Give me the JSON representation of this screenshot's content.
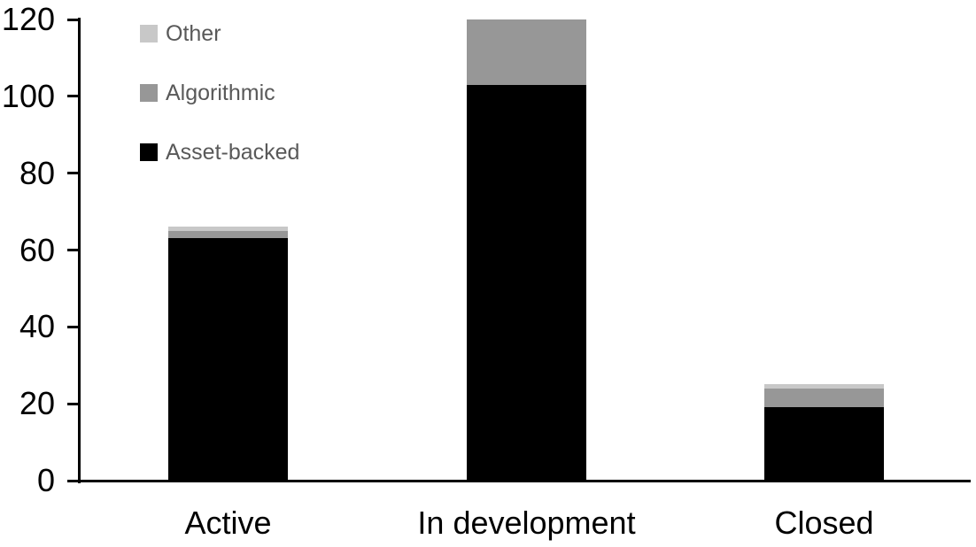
{
  "chart_data": {
    "type": "bar",
    "stacked": true,
    "title": "",
    "xlabel": "",
    "ylabel": "",
    "categories": [
      "Active",
      "In development",
      "Closed"
    ],
    "series": [
      {
        "name": "Asset-backed",
        "color": "#000000",
        "values": [
          63,
          103,
          19
        ]
      },
      {
        "name": "Algorithmic",
        "color": "#979797",
        "values": [
          2,
          17,
          5
        ]
      },
      {
        "name": "Other",
        "color": "#C8C8C8",
        "values": [
          1,
          0,
          1
        ]
      }
    ],
    "totals": [
      66,
      120,
      25
    ],
    "ylim": [
      0,
      120
    ],
    "yticks": [
      0,
      20,
      40,
      60,
      80,
      100,
      120
    ],
    "grid": false,
    "legend_position": "top-left",
    "legend_order": [
      "Other",
      "Algorithmic",
      "Asset-backed"
    ]
  },
  "colors": {
    "background": "#FFFFFF",
    "axis": "#000000",
    "axis_text": "#000000",
    "legend_text": "#595959"
  }
}
